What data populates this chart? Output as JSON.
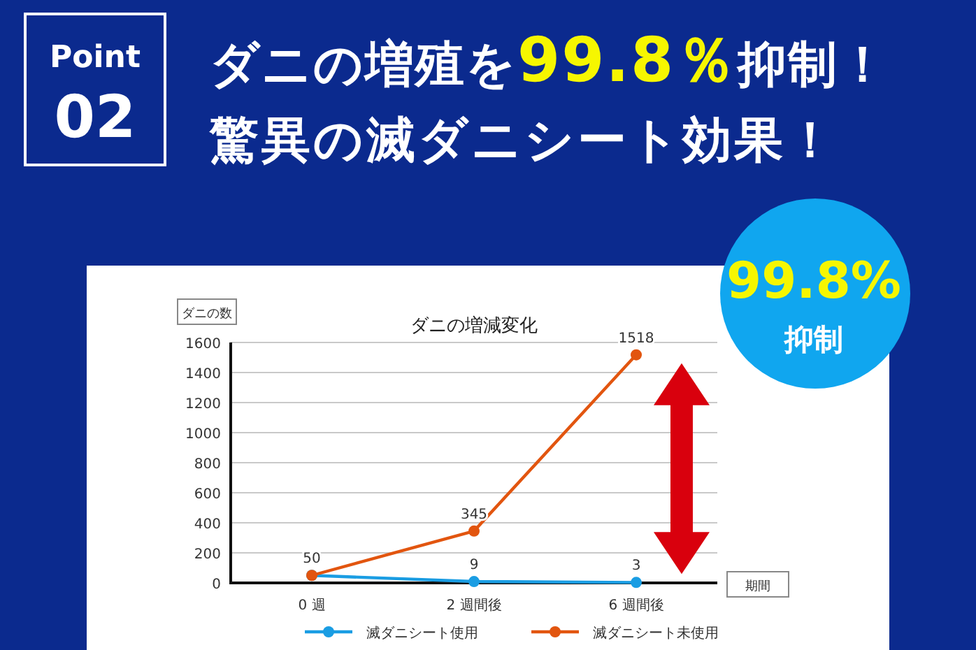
{
  "chart_data": {
    "type": "line",
    "title": "ダニの増減変化",
    "ylabel": "ダニの数",
    "xlabel": "期間",
    "categories": [
      "0 週",
      "2 週間後",
      "6 週間後"
    ],
    "series": [
      {
        "name": "滅ダニシート使用",
        "color": "#1a9de3",
        "values": [
          50,
          9,
          3
        ],
        "value_labels": [
          null,
          "9",
          "3"
        ]
      },
      {
        "name": "滅ダニシート未使用",
        "color": "#e2550f",
        "values": [
          50,
          345,
          1518
        ],
        "value_labels": [
          "50",
          "345",
          "1518"
        ]
      }
    ],
    "ylim": [
      0,
      1600
    ],
    "yticks": [
      0,
      200,
      400,
      600,
      800,
      1000,
      1200,
      1400,
      1600
    ],
    "grid": "y",
    "legend": "bottom",
    "marker": "circle",
    "annotations": [
      "Point",
      "02",
      "ダニの増殖を**99.8％**抑制！",
      "驚異の滅ダニシート効果！",
      "99.8%",
      "抑制"
    ]
  }
}
